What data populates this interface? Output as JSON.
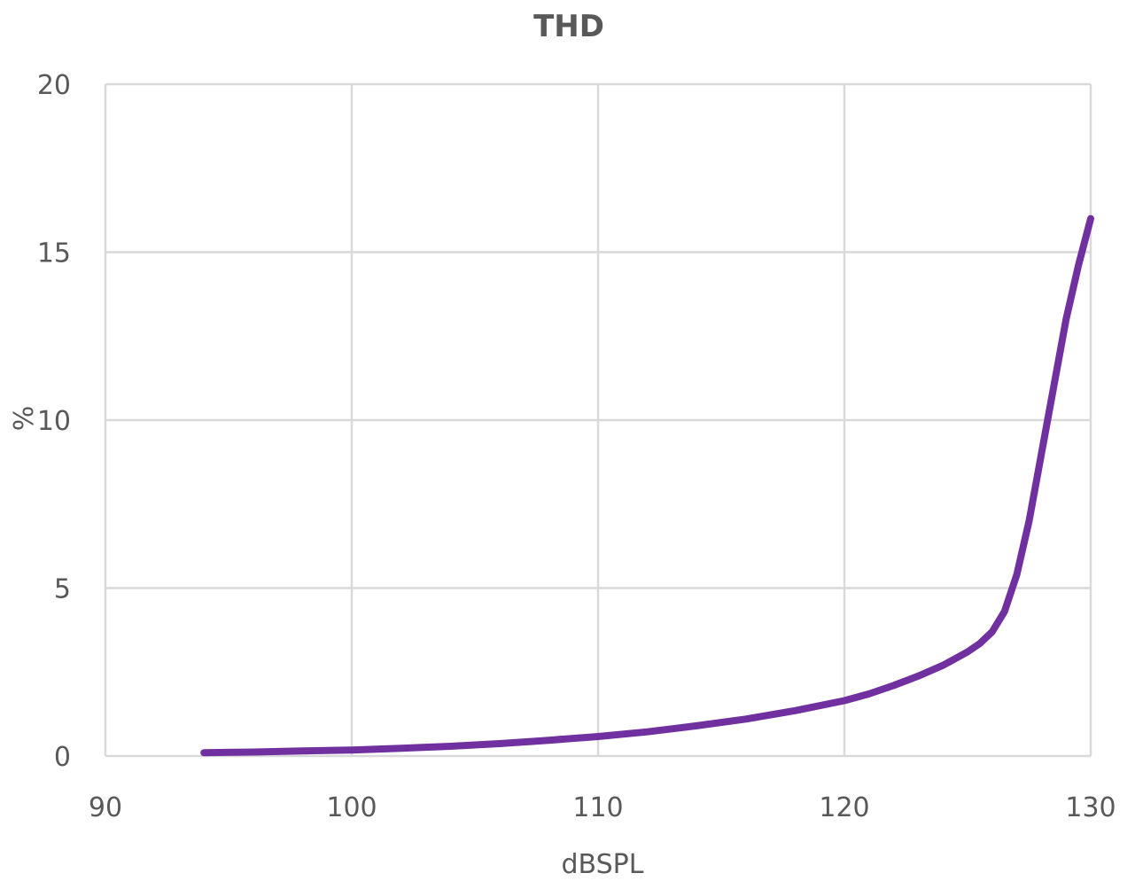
{
  "chart_data": {
    "type": "line",
    "title": "THD",
    "xlabel": "dBSPL",
    "ylabel": "%",
    "xlim": [
      90,
      130
    ],
    "ylim": [
      0,
      20
    ],
    "x_ticks": [
      "90",
      "100",
      "110",
      "120",
      "130"
    ],
    "y_ticks": [
      "0",
      "5",
      "10",
      "15",
      "20"
    ],
    "grid": true,
    "legend": "none",
    "series": [
      {
        "color": "#7030A0",
        "x": [
          94,
          96,
          98,
          100,
          102,
          104,
          106,
          108,
          110,
          112,
          114,
          116,
          118,
          120,
          121,
          122,
          123,
          124,
          125,
          125.5,
          126,
          126.5,
          127,
          127.5,
          128,
          128.5,
          129,
          129.5,
          130
        ],
        "y": [
          0.1,
          0.12,
          0.15,
          0.18,
          0.23,
          0.29,
          0.37,
          0.47,
          0.58,
          0.72,
          0.9,
          1.1,
          1.35,
          1.65,
          1.85,
          2.1,
          2.38,
          2.7,
          3.1,
          3.35,
          3.7,
          4.3,
          5.4,
          7.0,
          9.0,
          11.0,
          13.0,
          14.6,
          16.0
        ]
      }
    ]
  },
  "colors": {
    "series": "#7030A0",
    "grid": "#d9d9d9",
    "text": "#595959"
  }
}
